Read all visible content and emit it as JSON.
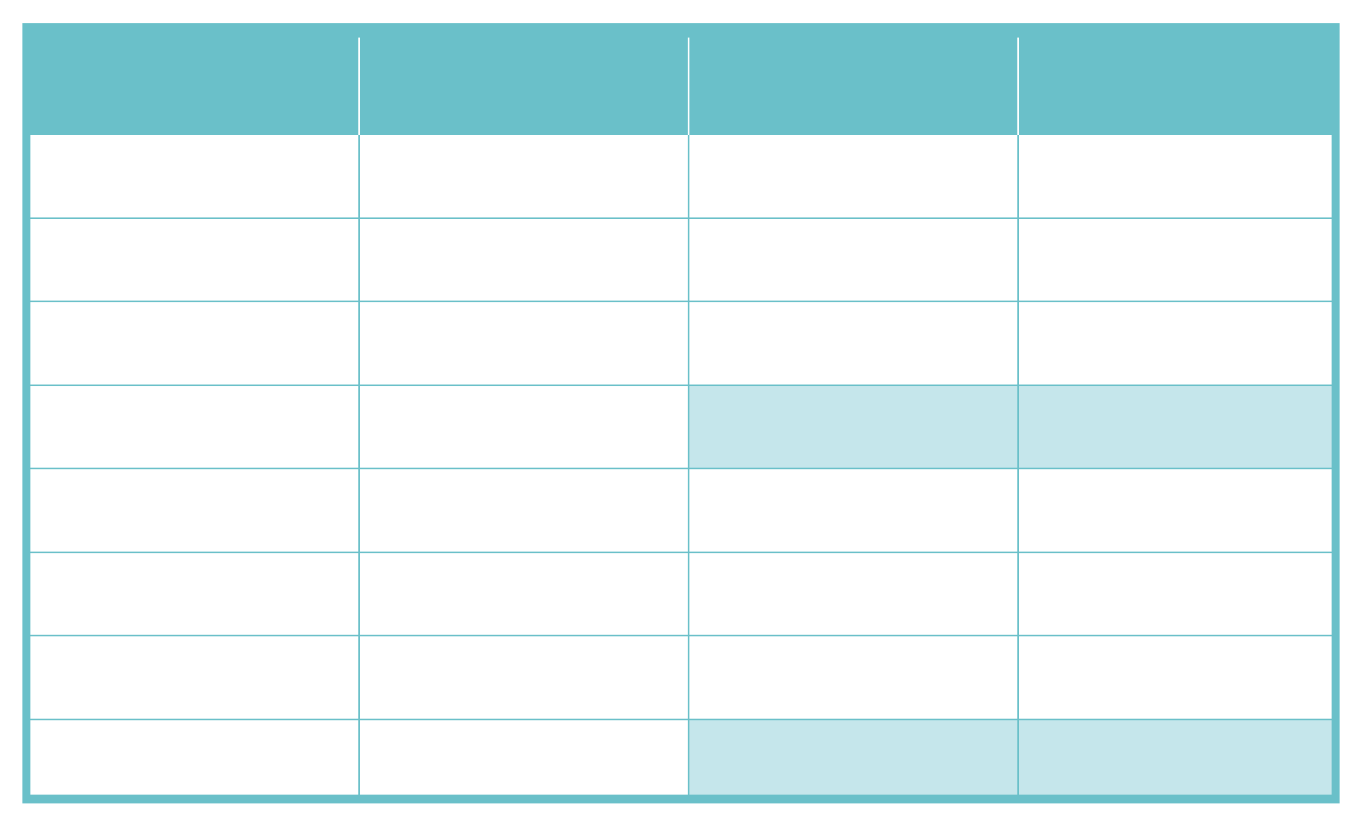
{
  "table": {
    "headers": [
      "",
      "",
      "",
      ""
    ],
    "rows": [
      {
        "cells": [
          "",
          "",
          "",
          ""
        ],
        "highlight": [
          false,
          false,
          false,
          false
        ]
      },
      {
        "cells": [
          "",
          "",
          "",
          ""
        ],
        "highlight": [
          false,
          false,
          false,
          false
        ]
      },
      {
        "cells": [
          "",
          "",
          "",
          ""
        ],
        "highlight": [
          false,
          false,
          false,
          false
        ]
      },
      {
        "cells": [
          "",
          "",
          "",
          ""
        ],
        "highlight": [
          false,
          false,
          true,
          true
        ]
      },
      {
        "cells": [
          "",
          "",
          "",
          ""
        ],
        "highlight": [
          false,
          false,
          false,
          false
        ]
      },
      {
        "cells": [
          "",
          "",
          "",
          ""
        ],
        "highlight": [
          false,
          false,
          false,
          false
        ]
      },
      {
        "cells": [
          "",
          "",
          "",
          ""
        ],
        "highlight": [
          false,
          false,
          false,
          false
        ]
      },
      {
        "cells": [
          "",
          "",
          "",
          ""
        ],
        "highlight": [
          false,
          false,
          true,
          true
        ]
      }
    ],
    "colors": {
      "header_bg": "#6ac0c9",
      "highlight_bg": "#c5e6eb",
      "cell_bg": "#ffffff",
      "grid_line": "#6ac0c9"
    }
  }
}
